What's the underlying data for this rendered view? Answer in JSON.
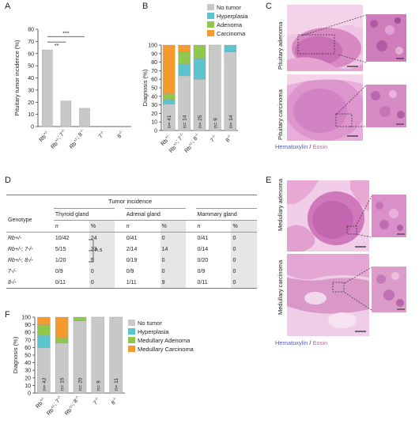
{
  "panels": {
    "A": "A",
    "B": "B",
    "C": "C",
    "D": "D",
    "E": "E",
    "F": "F"
  },
  "panel_a": {
    "ylabel": "Pituitary tumor incidence (%)",
    "sig1": "**",
    "sig2": "***"
  },
  "panel_b": {
    "ylabel": "Diagnosis (%)",
    "legend": [
      "No tumor",
      "Hyperplasia",
      "Adenoma",
      "Carcinoma"
    ]
  },
  "panel_c": {
    "row_labels": [
      "Pituitary adenoma",
      "Pituitary carcinoma"
    ],
    "caption_h": "Hematoxylin",
    "caption_sep": " / ",
    "caption_e": "Eosin"
  },
  "panel_d": {
    "header": "Tumor incidence",
    "genotype_label": "Genotype",
    "tissues": [
      "Thyroid gland",
      "Adrenal gland",
      "Mammary gland"
    ],
    "sub_n": "n",
    "sub_pct": "%",
    "ns": "n.s",
    "rows": [
      {
        "genotype": "Rb+/-",
        "thyroid": "10/42",
        "thyroid_pct": "24",
        "adrenal": "0/41",
        "adrenal_pct": "0",
        "mammary": "0/41",
        "mammary_pct": "0"
      },
      {
        "genotype": "Rb+/-; 7-/-",
        "thyroid": "5/15",
        "thyroid_pct": "33",
        "adrenal": "2/14",
        "adrenal_pct": "14",
        "mammary": "0/14",
        "mammary_pct": "0"
      },
      {
        "genotype": "Rb+/-; 8-/-",
        "thyroid": "1/20",
        "thyroid_pct": "5",
        "adrenal": "0/19",
        "adrenal_pct": "0",
        "mammary": "0/20",
        "mammary_pct": "0"
      },
      {
        "genotype": "7-/-",
        "thyroid": "0/9",
        "thyroid_pct": "0",
        "adrenal": "0/9",
        "adrenal_pct": "0",
        "mammary": "0/9",
        "mammary_pct": "0"
      },
      {
        "genotype": "8-/-",
        "thyroid": "0/11",
        "thyroid_pct": "0",
        "adrenal": "1/11",
        "adrenal_pct": "9",
        "mammary": "0/11",
        "mammary_pct": "0"
      }
    ]
  },
  "panel_e": {
    "row_labels": [
      "Medullary adenoma",
      "Medullary carcinoma"
    ],
    "caption_h": "Hematoxylin",
    "caption_sep": " / ",
    "caption_e": "Eosin"
  },
  "panel_f": {
    "ylabel": "Diagnosis (%)",
    "legend": [
      "No tumor",
      "Hyperplasia",
      "Medullary Adenoma",
      "Medullary Carcinoma"
    ]
  },
  "colors": {
    "no_tumor": "#c8c8c8",
    "hyperplasia": "#5bc4cf",
    "adenoma": "#8fc84a",
    "carcinoma": "#f59a2e",
    "he_pink": "#e7a7cf",
    "he_purple": "#c56fb4",
    "hematoxylin": "#5a5ab4",
    "eosin": "#e05a9e"
  },
  "chart_data": [
    {
      "id": "A",
      "type": "bar",
      "categories": [
        "Rb+/-",
        "Rb+/-; 7-/-",
        "Rb+/-; 8-/-",
        "7-/-",
        "8-/-"
      ],
      "values": [
        63,
        21,
        15,
        0,
        0
      ],
      "ylabel": "Pituitary tumor incidence (%)",
      "ylim": [
        0,
        80
      ],
      "yticks": [
        0,
        10,
        20,
        30,
        40,
        50,
        60,
        70,
        80
      ],
      "annotations": [
        "**",
        "***"
      ]
    },
    {
      "id": "B",
      "type": "bar",
      "stacked": true,
      "categories": [
        "Rb+/-",
        "Rb+/-; 7-/-",
        "Rb+/-; 8-/-",
        "7-/-",
        "8-/-"
      ],
      "n_labels": [
        "n= 41",
        "n= 14",
        "n= 25",
        "n= 9",
        "n= 14"
      ],
      "series": [
        {
          "name": "No tumor",
          "values": [
            31,
            64,
            60,
            100,
            92
          ]
        },
        {
          "name": "Hyperplasia",
          "values": [
            5,
            14,
            24,
            0,
            8
          ]
        },
        {
          "name": "Adenoma",
          "values": [
            7,
            14,
            16,
            0,
            0
          ]
        },
        {
          "name": "Carcinoma",
          "values": [
            57,
            8,
            0,
            0,
            0
          ]
        }
      ],
      "ylabel": "Diagnosis (%)",
      "ylim": [
        0,
        100
      ],
      "yticks": [
        0,
        10,
        20,
        30,
        40,
        50,
        60,
        70,
        80,
        90,
        100
      ]
    },
    {
      "id": "F",
      "type": "bar",
      "stacked": true,
      "categories": [
        "Rb+/-",
        "Rb+/-; 7-/-",
        "Rb+/-; 8-/-",
        "7-/-",
        "8-/-"
      ],
      "n_labels": [
        "n= 42",
        "n= 15",
        "n= 20",
        "n= 9",
        "n= 11"
      ],
      "series": [
        {
          "name": "No tumor",
          "values": [
            60,
            66,
            95,
            100,
            100
          ]
        },
        {
          "name": "Hyperplasia",
          "values": [
            16,
            0,
            0,
            0,
            0
          ]
        },
        {
          "name": "Medullary Adenoma",
          "values": [
            14,
            7,
            5,
            0,
            0
          ]
        },
        {
          "name": "Medullary Carcinoma",
          "values": [
            10,
            27,
            0,
            0,
            0
          ]
        }
      ],
      "ylabel": "Diagnosis (%)",
      "ylim": [
        0,
        100
      ],
      "yticks": [
        0,
        10,
        20,
        30,
        40,
        50,
        60,
        70,
        80,
        90,
        100
      ]
    }
  ]
}
